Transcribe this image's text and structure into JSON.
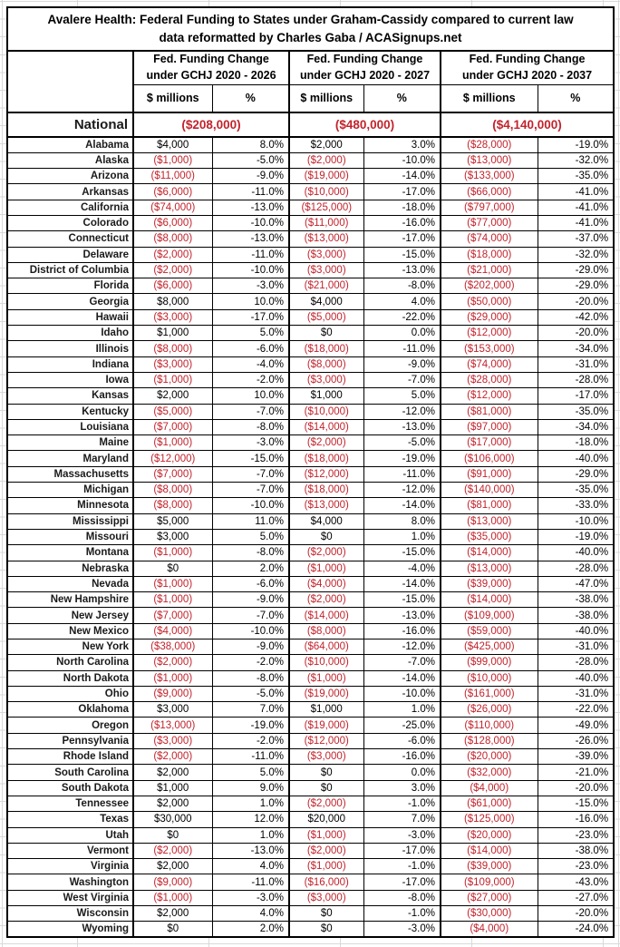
{
  "colors": {
    "negative_red": "#c2232c",
    "gridline_gray": "#d9d9d9",
    "table_border": "#000000",
    "background": "#ffffff"
  },
  "chart_data": {
    "type": "table",
    "title": "Avalere Health: Federal Funding to States under Graham-Cassidy compared to current law",
    "subtitle": "data reformatted by Charles Gaba / ACASignups.net",
    "column_groups": [
      "Fed. Funding Change\nunder GCHJ 2020 - 2026",
      "Fed. Funding Change\nunder GCHJ 2020 - 2027",
      "Fed. Funding Change\nunder GCHJ 2020 - 2037"
    ],
    "sub_columns": [
      "$ millions",
      "%"
    ],
    "national": {
      "label": "National",
      "values": [
        "($208,000)",
        "($480,000)",
        "($4,140,000)"
      ]
    },
    "rows": [
      [
        "Alabama",
        "$4,000",
        "8.0%",
        "$2,000",
        "3.0%",
        "($28,000)",
        "-19.0%"
      ],
      [
        "Alaska",
        "($1,000)",
        "-5.0%",
        "($2,000)",
        "-10.0%",
        "($13,000)",
        "-32.0%"
      ],
      [
        "Arizona",
        "($11,000)",
        "-9.0%",
        "($19,000)",
        "-14.0%",
        "($133,000)",
        "-35.0%"
      ],
      [
        "Arkansas",
        "($6,000)",
        "-11.0%",
        "($10,000)",
        "-17.0%",
        "($66,000)",
        "-41.0%"
      ],
      [
        "California",
        "($74,000)",
        "-13.0%",
        "($125,000)",
        "-18.0%",
        "($797,000)",
        "-41.0%"
      ],
      [
        "Colorado",
        "($6,000)",
        "-10.0%",
        "($11,000)",
        "-16.0%",
        "($77,000)",
        "-41.0%"
      ],
      [
        "Connecticut",
        "($8,000)",
        "-13.0%",
        "($13,000)",
        "-17.0%",
        "($74,000)",
        "-37.0%"
      ],
      [
        "Delaware",
        "($2,000)",
        "-11.0%",
        "($3,000)",
        "-15.0%",
        "($18,000)",
        "-32.0%"
      ],
      [
        "District of Columbia",
        "($2,000)",
        "-10.0%",
        "($3,000)",
        "-13.0%",
        "($21,000)",
        "-29.0%"
      ],
      [
        "Florida",
        "($6,000)",
        "-3.0%",
        "($21,000)",
        "-8.0%",
        "($202,000)",
        "-29.0%"
      ],
      [
        "Georgia",
        "$8,000",
        "10.0%",
        "$4,000",
        "4.0%",
        "($50,000)",
        "-20.0%"
      ],
      [
        "Hawaii",
        "($3,000)",
        "-17.0%",
        "($5,000)",
        "-22.0%",
        "($29,000)",
        "-42.0%"
      ],
      [
        "Idaho",
        "$1,000",
        "5.0%",
        "$0",
        "0.0%",
        "($12,000)",
        "-20.0%"
      ],
      [
        "Illinois",
        "($8,000)",
        "-6.0%",
        "($18,000)",
        "-11.0%",
        "($153,000)",
        "-34.0%"
      ],
      [
        "Indiana",
        "($3,000)",
        "-4.0%",
        "($8,000)",
        "-9.0%",
        "($74,000)",
        "-31.0%"
      ],
      [
        "Iowa",
        "($1,000)",
        "-2.0%",
        "($3,000)",
        "-7.0%",
        "($28,000)",
        "-28.0%"
      ],
      [
        "Kansas",
        "$2,000",
        "10.0%",
        "$1,000",
        "5.0%",
        "($12,000)",
        "-17.0%"
      ],
      [
        "Kentucky",
        "($5,000)",
        "-7.0%",
        "($10,000)",
        "-12.0%",
        "($81,000)",
        "-35.0%"
      ],
      [
        "Louisiana",
        "($7,000)",
        "-8.0%",
        "($14,000)",
        "-13.0%",
        "($97,000)",
        "-34.0%"
      ],
      [
        "Maine",
        "($1,000)",
        "-3.0%",
        "($2,000)",
        "-5.0%",
        "($17,000)",
        "-18.0%"
      ],
      [
        "Maryland",
        "($12,000)",
        "-15.0%",
        "($18,000)",
        "-19.0%",
        "($106,000)",
        "-40.0%"
      ],
      [
        "Massachusetts",
        "($7,000)",
        "-7.0%",
        "($12,000)",
        "-11.0%",
        "($91,000)",
        "-29.0%"
      ],
      [
        "Michigan",
        "($8,000)",
        "-7.0%",
        "($18,000)",
        "-12.0%",
        "($140,000)",
        "-35.0%"
      ],
      [
        "Minnesota",
        "($8,000)",
        "-10.0%",
        "($13,000)",
        "-14.0%",
        "($81,000)",
        "-33.0%"
      ],
      [
        "Mississippi",
        "$5,000",
        "11.0%",
        "$4,000",
        "8.0%",
        "($13,000)",
        "-10.0%"
      ],
      [
        "Missouri",
        "$3,000",
        "5.0%",
        "$0",
        "1.0%",
        "($35,000)",
        "-19.0%"
      ],
      [
        "Montana",
        "($1,000)",
        "-8.0%",
        "($2,000)",
        "-15.0%",
        "($14,000)",
        "-40.0%"
      ],
      [
        "Nebraska",
        "$0",
        "2.0%",
        "($1,000)",
        "-4.0%",
        "($13,000)",
        "-28.0%"
      ],
      [
        "Nevada",
        "($1,000)",
        "-6.0%",
        "($4,000)",
        "-14.0%",
        "($39,000)",
        "-47.0%"
      ],
      [
        "New Hampshire",
        "($1,000)",
        "-9.0%",
        "($2,000)",
        "-15.0%",
        "($14,000)",
        "-38.0%"
      ],
      [
        "New Jersey",
        "($7,000)",
        "-7.0%",
        "($14,000)",
        "-13.0%",
        "($109,000)",
        "-38.0%"
      ],
      [
        "New Mexico",
        "($4,000)",
        "-10.0%",
        "($8,000)",
        "-16.0%",
        "($59,000)",
        "-40.0%"
      ],
      [
        "New York",
        "($38,000)",
        "-9.0%",
        "($64,000)",
        "-12.0%",
        "($425,000)",
        "-31.0%"
      ],
      [
        "North Carolina",
        "($2,000)",
        "-2.0%",
        "($10,000)",
        "-7.0%",
        "($99,000)",
        "-28.0%"
      ],
      [
        "North Dakota",
        "($1,000)",
        "-8.0%",
        "($1,000)",
        "-14.0%",
        "($10,000)",
        "-40.0%"
      ],
      [
        "Ohio",
        "($9,000)",
        "-5.0%",
        "($19,000)",
        "-10.0%",
        "($161,000)",
        "-31.0%"
      ],
      [
        "Oklahoma",
        "$3,000",
        "7.0%",
        "$1,000",
        "1.0%",
        "($26,000)",
        "-22.0%"
      ],
      [
        "Oregon",
        "($13,000)",
        "-19.0%",
        "($19,000)",
        "-25.0%",
        "($110,000)",
        "-49.0%"
      ],
      [
        "Pennsylvania",
        "($3,000)",
        "-2.0%",
        "($12,000)",
        "-6.0%",
        "($128,000)",
        "-26.0%"
      ],
      [
        "Rhode Island",
        "($2,000)",
        "-11.0%",
        "($3,000)",
        "-16.0%",
        "($20,000)",
        "-39.0%"
      ],
      [
        "South Carolina",
        "$2,000",
        "5.0%",
        "$0",
        "0.0%",
        "($32,000)",
        "-21.0%"
      ],
      [
        "South Dakota",
        "$1,000",
        "9.0%",
        "$0",
        "3.0%",
        "($4,000)",
        "-20.0%"
      ],
      [
        "Tennessee",
        "$2,000",
        "1.0%",
        "($2,000)",
        "-1.0%",
        "($61,000)",
        "-15.0%"
      ],
      [
        "Texas",
        "$30,000",
        "12.0%",
        "$20,000",
        "7.0%",
        "($125,000)",
        "-16.0%"
      ],
      [
        "Utah",
        "$0",
        "1.0%",
        "($1,000)",
        "-3.0%",
        "($20,000)",
        "-23.0%"
      ],
      [
        "Vermont",
        "($2,000)",
        "-13.0%",
        "($2,000)",
        "-17.0%",
        "($14,000)",
        "-38.0%"
      ],
      [
        "Virginia",
        "$2,000",
        "4.0%",
        "($1,000)",
        "-1.0%",
        "($39,000)",
        "-23.0%"
      ],
      [
        "Washington",
        "($9,000)",
        "-11.0%",
        "($16,000)",
        "-17.0%",
        "($109,000)",
        "-43.0%"
      ],
      [
        "West Virginia",
        "($1,000)",
        "-3.0%",
        "($3,000)",
        "-8.0%",
        "($27,000)",
        "-27.0%"
      ],
      [
        "Wisconsin",
        "$2,000",
        "4.0%",
        "$0",
        "-1.0%",
        "($30,000)",
        "-20.0%"
      ],
      [
        "Wyoming",
        "$0",
        "2.0%",
        "$0",
        "-3.0%",
        "($4,000)",
        "-24.0%"
      ]
    ]
  }
}
